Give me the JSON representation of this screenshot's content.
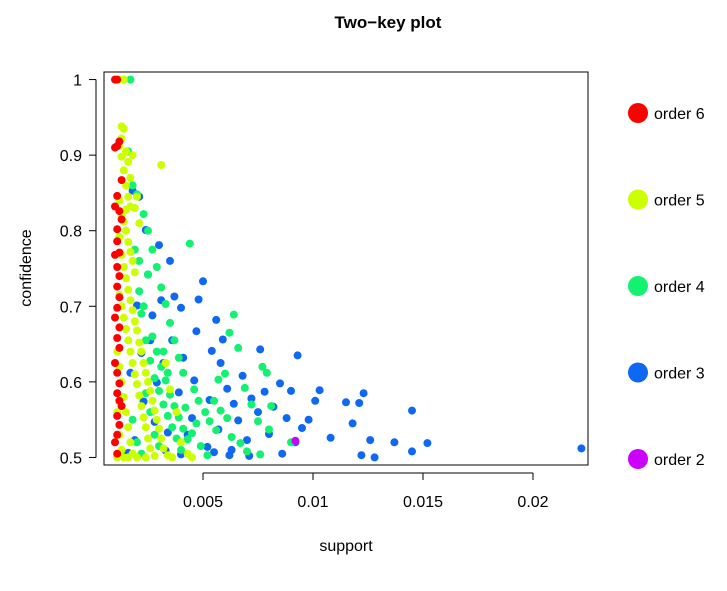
{
  "chart_data": {
    "type": "scatter",
    "title": "Two−key plot",
    "xlabel": "support",
    "ylabel": "confidence",
    "xlim": [
      0.0005,
      0.0225
    ],
    "ylim": [
      0.49,
      1.01
    ],
    "x_ticks": [
      {
        "value": 0.005,
        "label": "0.005"
      },
      {
        "value": 0.01,
        "label": "0.01"
      },
      {
        "value": 0.015,
        "label": "0.015"
      },
      {
        "value": 0.02,
        "label": "0.02"
      }
    ],
    "y_ticks": [
      {
        "value": 0.5,
        "label": "0.5"
      },
      {
        "value": 0.6,
        "label": "0.6"
      },
      {
        "value": 0.7,
        "label": "0.7"
      },
      {
        "value": 0.8,
        "label": "0.8"
      },
      {
        "value": 0.9,
        "label": "0.9"
      },
      {
        "value": 1.0,
        "label": "1"
      }
    ],
    "grid": false,
    "legend_position": "right",
    "series": [
      {
        "name": "order 3",
        "color": "#0F68F2",
        "points": [
          [
            0.0222,
            0.512
          ],
          [
            0.0152,
            0.519
          ],
          [
            0.0145,
            0.508
          ],
          [
            0.0145,
            0.562
          ],
          [
            0.0137,
            0.52
          ],
          [
            0.0128,
            0.5
          ],
          [
            0.0126,
            0.523
          ],
          [
            0.0122,
            0.503
          ],
          [
            0.0123,
            0.585
          ],
          [
            0.0121,
            0.572
          ],
          [
            0.0115,
            0.573
          ],
          [
            0.0118,
            0.545
          ],
          [
            0.0108,
            0.526
          ],
          [
            0.0103,
            0.589
          ],
          [
            0.0101,
            0.575
          ],
          [
            0.0098,
            0.55
          ],
          [
            0.0095,
            0.539
          ],
          [
            0.0093,
            0.635
          ],
          [
            0.009,
            0.588
          ],
          [
            0.0092,
            0.52
          ],
          [
            0.0088,
            0.552
          ],
          [
            0.0085,
            0.598
          ],
          [
            0.0082,
            0.567
          ],
          [
            0.008,
            0.531
          ],
          [
            0.0086,
            0.505
          ],
          [
            0.0078,
            0.587
          ],
          [
            0.0076,
            0.643
          ],
          [
            0.0075,
            0.56
          ],
          [
            0.0072,
            0.578
          ],
          [
            0.007,
            0.523
          ],
          [
            0.0068,
            0.608
          ],
          [
            0.0066,
            0.549
          ],
          [
            0.0064,
            0.571
          ],
          [
            0.0063,
            0.51
          ],
          [
            0.0061,
            0.591
          ],
          [
            0.0059,
            0.656
          ],
          [
            0.0058,
            0.625
          ],
          [
            0.0057,
            0.537
          ],
          [
            0.0056,
            0.682
          ],
          [
            0.0054,
            0.641
          ],
          [
            0.0053,
            0.576
          ],
          [
            0.0052,
            0.514
          ],
          [
            0.005,
            0.733
          ],
          [
            0.0048,
            0.709
          ],
          [
            0.0047,
            0.667
          ],
          [
            0.0046,
            0.602
          ],
          [
            0.0045,
            0.552
          ],
          [
            0.0043,
            0.53
          ],
          [
            0.0041,
            0.632
          ],
          [
            0.004,
            0.698
          ],
          [
            0.0039,
            0.586
          ],
          [
            0.0037,
            0.713
          ],
          [
            0.0036,
            0.655
          ],
          [
            0.0035,
            0.76
          ],
          [
            0.0034,
            0.533
          ],
          [
            0.0032,
            0.625
          ],
          [
            0.0031,
            0.708
          ],
          [
            0.003,
            0.781
          ],
          [
            0.0029,
            0.599
          ],
          [
            0.0028,
            0.547
          ],
          [
            0.0027,
            0.688
          ],
          [
            0.0026,
            0.655
          ],
          [
            0.0025,
            0.742
          ],
          [
            0.0024,
            0.801
          ],
          [
            0.0023,
            0.574
          ],
          [
            0.0022,
            0.638
          ],
          [
            0.0021,
            0.845
          ],
          [
            0.002,
            0.701
          ],
          [
            0.0019,
            0.523
          ],
          [
            0.0018,
            0.853
          ],
          [
            0.0017,
            0.612
          ],
          [
            0.0016,
            0.506
          ],
          [
            0.0015,
            0.502
          ],
          [
            0.0033,
            0.509
          ],
          [
            0.004,
            0.504
          ],
          [
            0.0055,
            0.507
          ],
          [
            0.0062,
            0.503
          ],
          [
            0.0071,
            0.502
          ]
        ]
      },
      {
        "name": "order 4",
        "color": "#12F270",
        "points": [
          [
            0.0017,
            1.0
          ],
          [
            0.0016,
            0.905
          ],
          [
            0.0018,
            0.86
          ],
          [
            0.002,
            0.848
          ],
          [
            0.0023,
            0.822
          ],
          [
            0.0025,
            0.8
          ],
          [
            0.0027,
            0.775
          ],
          [
            0.0029,
            0.752
          ],
          [
            0.0031,
            0.725
          ],
          [
            0.0033,
            0.703
          ],
          [
            0.0035,
            0.678
          ],
          [
            0.0037,
            0.655
          ],
          [
            0.0039,
            0.632
          ],
          [
            0.0041,
            0.612
          ],
          [
            0.0044,
            0.783
          ],
          [
            0.0046,
            0.59
          ],
          [
            0.0048,
            0.575
          ],
          [
            0.0051,
            0.56
          ],
          [
            0.0053,
            0.548
          ],
          [
            0.0056,
            0.536
          ],
          [
            0.0058,
            0.562
          ],
          [
            0.006,
            0.611
          ],
          [
            0.0062,
            0.665
          ],
          [
            0.0064,
            0.689
          ],
          [
            0.0066,
            0.645
          ],
          [
            0.0069,
            0.592
          ],
          [
            0.0072,
            0.57
          ],
          [
            0.0075,
            0.548
          ],
          [
            0.0077,
            0.62
          ],
          [
            0.0079,
            0.612
          ],
          [
            0.0081,
            0.568
          ],
          [
            0.008,
            0.537
          ],
          [
            0.0076,
            0.504
          ],
          [
            0.009,
            0.52
          ],
          [
            0.0021,
            0.72
          ],
          [
            0.0022,
            0.69
          ],
          [
            0.0024,
            0.655
          ],
          [
            0.0026,
            0.628
          ],
          [
            0.0028,
            0.605
          ],
          [
            0.003,
            0.588
          ],
          [
            0.0032,
            0.57
          ],
          [
            0.0034,
            0.555
          ],
          [
            0.0036,
            0.54
          ],
          [
            0.0038,
            0.525
          ],
          [
            0.004,
            0.51
          ],
          [
            0.0042,
            0.566
          ],
          [
            0.0045,
            0.532
          ],
          [
            0.0049,
            0.515
          ],
          [
            0.0052,
            0.503
          ],
          [
            0.0019,
            0.775
          ],
          [
            0.0021,
            0.76
          ],
          [
            0.0023,
            0.7
          ],
          [
            0.0025,
            0.742
          ],
          [
            0.0027,
            0.66
          ],
          [
            0.0029,
            0.64
          ],
          [
            0.0031,
            0.62
          ],
          [
            0.0033,
            0.602
          ],
          [
            0.0035,
            0.583
          ],
          [
            0.0037,
            0.568
          ],
          [
            0.0039,
            0.553
          ],
          [
            0.0041,
            0.538
          ],
          [
            0.0043,
            0.524
          ],
          [
            0.0047,
            0.545
          ],
          [
            0.0055,
            0.575
          ],
          [
            0.0057,
            0.603
          ],
          [
            0.0061,
            0.552
          ],
          [
            0.0063,
            0.527
          ],
          [
            0.0067,
            0.519
          ],
          [
            0.007,
            0.508
          ],
          [
            0.0018,
            0.55
          ],
          [
            0.002,
            0.52
          ],
          [
            0.0022,
            0.505
          ],
          [
            0.0024,
            0.585
          ],
          [
            0.0026,
            0.56
          ],
          [
            0.0028,
            0.53
          ],
          [
            0.003,
            0.515
          ],
          [
            0.0032,
            0.64
          ],
          [
            0.0034,
            0.612
          ]
        ]
      },
      {
        "name": "order 5",
        "color": "#CCFF00",
        "points": [
          [
            0.0011,
            1.0
          ],
          [
            0.0012,
            1.0
          ],
          [
            0.0014,
            1.0
          ],
          [
            0.0013,
            0.938
          ],
          [
            0.0014,
            0.935
          ],
          [
            0.0013,
            0.922
          ],
          [
            0.0012,
            0.912
          ],
          [
            0.0013,
            0.898
          ],
          [
            0.0015,
            0.905
          ],
          [
            0.0016,
            0.891
          ],
          [
            0.0018,
            0.9
          ],
          [
            0.0031,
            0.887
          ],
          [
            0.0014,
            0.88
          ],
          [
            0.0015,
            0.86
          ],
          [
            0.0016,
            0.845
          ],
          [
            0.0017,
            0.832
          ],
          [
            0.0012,
            0.84
          ],
          [
            0.0013,
            0.82
          ],
          [
            0.0014,
            0.812
          ],
          [
            0.0015,
            0.8
          ],
          [
            0.0016,
            0.785
          ],
          [
            0.0017,
            0.772
          ],
          [
            0.0018,
            0.76
          ],
          [
            0.0019,
            0.745
          ],
          [
            0.0012,
            0.792
          ],
          [
            0.0013,
            0.768
          ],
          [
            0.0014,
            0.752
          ],
          [
            0.0015,
            0.737
          ],
          [
            0.0016,
            0.722
          ],
          [
            0.0017,
            0.708
          ],
          [
            0.0018,
            0.695
          ],
          [
            0.0019,
            0.68
          ],
          [
            0.002,
            0.668
          ],
          [
            0.0021,
            0.652
          ],
          [
            0.0022,
            0.64
          ],
          [
            0.0023,
            0.625
          ],
          [
            0.0024,
            0.612
          ],
          [
            0.0025,
            0.6
          ],
          [
            0.0026,
            0.588
          ],
          [
            0.0027,
            0.575
          ],
          [
            0.0028,
            0.562
          ],
          [
            0.0029,
            0.55
          ],
          [
            0.003,
            0.538
          ],
          [
            0.0031,
            0.525
          ],
          [
            0.0032,
            0.512
          ],
          [
            0.0034,
            0.503
          ],
          [
            0.0012,
            0.715
          ],
          [
            0.0013,
            0.7
          ],
          [
            0.0014,
            0.685
          ],
          [
            0.0015,
            0.67
          ],
          [
            0.0016,
            0.655
          ],
          [
            0.0017,
            0.64
          ],
          [
            0.0018,
            0.625
          ],
          [
            0.0019,
            0.61
          ],
          [
            0.002,
            0.597
          ],
          [
            0.0021,
            0.582
          ],
          [
            0.0022,
            0.568
          ],
          [
            0.0023,
            0.553
          ],
          [
            0.0024,
            0.54
          ],
          [
            0.0025,
            0.525
          ],
          [
            0.0026,
            0.512
          ],
          [
            0.0028,
            0.502
          ],
          [
            0.0011,
            0.64
          ],
          [
            0.0012,
            0.62
          ],
          [
            0.0013,
            0.6
          ],
          [
            0.0014,
            0.58
          ],
          [
            0.0015,
            0.56
          ],
          [
            0.0016,
            0.54
          ],
          [
            0.0017,
            0.52
          ],
          [
            0.0018,
            0.505
          ],
          [
            0.0011,
            0.56
          ],
          [
            0.0012,
            0.53
          ],
          [
            0.0013,
            0.51
          ],
          [
            0.0014,
            0.5
          ],
          [
            0.0011,
            0.5
          ],
          [
            0.0016,
            0.5
          ],
          [
            0.002,
            0.5
          ],
          [
            0.0024,
            0.5
          ],
          [
            0.0036,
            0.5
          ],
          [
            0.004,
            0.52
          ],
          [
            0.0043,
            0.505
          ],
          [
            0.0045,
            0.5
          ],
          [
            0.0038,
            0.56
          ],
          [
            0.0035,
            0.59
          ],
          [
            0.0033,
            0.625
          ],
          [
            0.0019,
            0.83
          ],
          [
            0.0021,
            0.81
          ],
          [
            0.002,
            0.845
          ],
          [
            0.0017,
            0.87
          ],
          [
            0.0015,
            0.828
          ]
        ]
      },
      {
        "name": "order 6",
        "color": "#FF0000",
        "points": [
          [
            0.001,
            1.0
          ],
          [
            0.0011,
            1.0
          ],
          [
            0.001,
            0.91
          ],
          [
            0.0011,
            0.912
          ],
          [
            0.0012,
            0.918
          ],
          [
            0.0013,
            0.867
          ],
          [
            0.0011,
            0.846
          ],
          [
            0.001,
            0.832
          ],
          [
            0.0012,
            0.826
          ],
          [
            0.0013,
            0.815
          ],
          [
            0.0011,
            0.802
          ],
          [
            0.0011,
            0.786
          ],
          [
            0.0012,
            0.771
          ],
          [
            0.001,
            0.768
          ],
          [
            0.0011,
            0.752
          ],
          [
            0.0012,
            0.74
          ],
          [
            0.0011,
            0.726
          ],
          [
            0.0012,
            0.712
          ],
          [
            0.0011,
            0.698
          ],
          [
            0.001,
            0.685
          ],
          [
            0.0012,
            0.672
          ],
          [
            0.0011,
            0.658
          ],
          [
            0.0012,
            0.645
          ],
          [
            0.001,
            0.625
          ],
          [
            0.0011,
            0.612
          ],
          [
            0.0012,
            0.598
          ],
          [
            0.0011,
            0.585
          ],
          [
            0.0012,
            0.575
          ],
          [
            0.0013,
            0.568
          ],
          [
            0.0011,
            0.555
          ],
          [
            0.0012,
            0.543
          ],
          [
            0.0011,
            0.53
          ],
          [
            0.001,
            0.52
          ],
          [
            0.0011,
            0.505
          ]
        ]
      },
      {
        "name": "order 2",
        "color": "#CC00FF",
        "points": [
          [
            0.0092,
            0.522
          ]
        ]
      }
    ],
    "legend_order": [
      "order 6",
      "order 5",
      "order 4",
      "order 3",
      "order 2"
    ]
  }
}
